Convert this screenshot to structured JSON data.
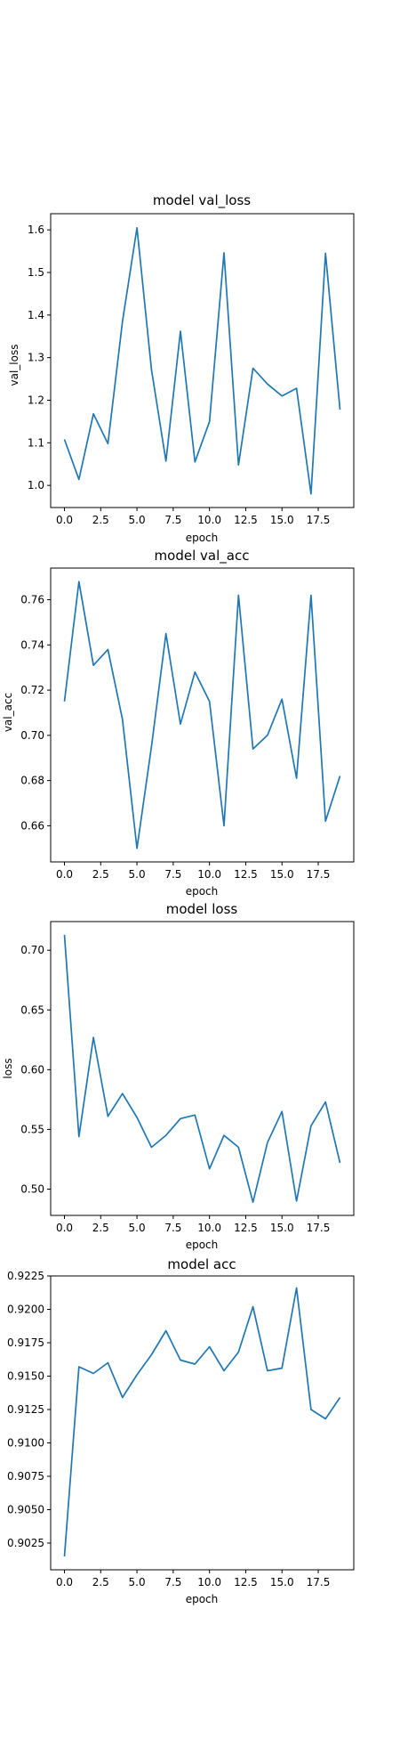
{
  "chart_data": [
    {
      "type": "line",
      "title": "model val_loss",
      "xlabel": "epoch",
      "ylabel": "val_loss",
      "xlim": [
        -0.95,
        19.95
      ],
      "ylim": [
        0.948,
        1.638
      ],
      "xticks": [
        0.0,
        2.5,
        5.0,
        7.5,
        10.0,
        12.5,
        15.0,
        17.5
      ],
      "xtick_labels": [
        "0.0",
        "2.5",
        "5.0",
        "7.5",
        "10.0",
        "12.5",
        "15.0",
        "17.5"
      ],
      "yticks": [
        1.0,
        1.1,
        1.2,
        1.3,
        1.4,
        1.5,
        1.6
      ],
      "ytick_labels": [
        "1.0",
        "1.1",
        "1.2",
        "1.3",
        "1.4",
        "1.5",
        "1.6"
      ],
      "grid": false,
      "series": [
        {
          "color": "#1f77b4",
          "x": [
            0,
            1,
            2,
            3,
            4,
            5,
            6,
            7,
            8,
            9,
            10,
            11,
            12,
            13,
            14,
            15,
            16,
            17,
            18,
            19
          ],
          "y": [
            1.108,
            1.014,
            1.168,
            1.098,
            1.385,
            1.605,
            1.272,
            1.057,
            1.362,
            1.055,
            1.15,
            1.546,
            1.048,
            1.275,
            1.238,
            1.21,
            1.228,
            0.98,
            1.545,
            1.178
          ]
        }
      ]
    },
    {
      "type": "line",
      "title": "model val_acc",
      "xlabel": "epoch",
      "ylabel": "val_acc",
      "xlim": [
        -0.95,
        19.95
      ],
      "ylim": [
        0.644,
        0.774
      ],
      "xticks": [
        0.0,
        2.5,
        5.0,
        7.5,
        10.0,
        12.5,
        15.0,
        17.5
      ],
      "xtick_labels": [
        "0.0",
        "2.5",
        "5.0",
        "7.5",
        "10.0",
        "12.5",
        "15.0",
        "17.5"
      ],
      "yticks": [
        0.66,
        0.68,
        0.7,
        0.72,
        0.74,
        0.76
      ],
      "ytick_labels": [
        "0.66",
        "0.68",
        "0.70",
        "0.72",
        "0.74",
        "0.76"
      ],
      "grid": false,
      "series": [
        {
          "color": "#1f77b4",
          "x": [
            0,
            1,
            2,
            3,
            4,
            5,
            6,
            7,
            8,
            9,
            10,
            11,
            12,
            13,
            14,
            15,
            16,
            17,
            18,
            19
          ],
          "y": [
            0.715,
            0.768,
            0.731,
            0.738,
            0.707,
            0.65,
            0.695,
            0.745,
            0.705,
            0.728,
            0.715,
            0.66,
            0.762,
            0.694,
            0.7,
            0.716,
            0.681,
            0.762,
            0.662,
            0.682
          ]
        }
      ]
    },
    {
      "type": "line",
      "title": "model loss",
      "xlabel": "epoch",
      "ylabel": "loss",
      "xlim": [
        -0.95,
        19.95
      ],
      "ylim": [
        0.478,
        0.724
      ],
      "xticks": [
        0.0,
        2.5,
        5.0,
        7.5,
        10.0,
        12.5,
        15.0,
        17.5
      ],
      "xtick_labels": [
        "0.0",
        "2.5",
        "5.0",
        "7.5",
        "10.0",
        "12.5",
        "15.0",
        "17.5"
      ],
      "yticks": [
        0.5,
        0.55,
        0.6,
        0.65,
        0.7
      ],
      "ytick_labels": [
        "0.50",
        "0.55",
        "0.60",
        "0.65",
        "0.70"
      ],
      "grid": false,
      "series": [
        {
          "color": "#1f77b4",
          "x": [
            0,
            1,
            2,
            3,
            4,
            5,
            6,
            7,
            8,
            9,
            10,
            11,
            12,
            13,
            14,
            15,
            16,
            17,
            18,
            19
          ],
          "y": [
            0.713,
            0.544,
            0.627,
            0.561,
            0.58,
            0.56,
            0.535,
            0.545,
            0.559,
            0.562,
            0.517,
            0.545,
            0.535,
            0.489,
            0.539,
            0.565,
            0.49,
            0.553,
            0.573,
            0.522
          ]
        }
      ]
    },
    {
      "type": "line",
      "title": "model acc",
      "xlabel": "epoch",
      "ylabel": "",
      "xlim": [
        -0.95,
        19.95
      ],
      "ylim": [
        0.9005,
        0.9225
      ],
      "xticks": [
        0.0,
        2.5,
        5.0,
        7.5,
        10.0,
        12.5,
        15.0,
        17.5
      ],
      "xtick_labels": [
        "0.0",
        "2.5",
        "5.0",
        "7.5",
        "10.0",
        "12.5",
        "15.0",
        "17.5"
      ],
      "yticks": [
        0.9025,
        0.905,
        0.9075,
        0.91,
        0.9125,
        0.915,
        0.9175,
        0.92,
        0.9225
      ],
      "ytick_labels": [
        "0.9025",
        "0.9050",
        "0.9075",
        "0.9100",
        "0.9125",
        "0.9150",
        "0.9175",
        "0.9200",
        "0.9225"
      ],
      "grid": false,
      "series": [
        {
          "color": "#1f77b4",
          "x": [
            0,
            1,
            2,
            3,
            4,
            5,
            6,
            7,
            8,
            9,
            10,
            11,
            12,
            13,
            14,
            15,
            16,
            17,
            18,
            19
          ],
          "y": [
            0.9015,
            0.9157,
            0.9152,
            0.916,
            0.9134,
            0.9151,
            0.9166,
            0.9184,
            0.9162,
            0.9159,
            0.9172,
            0.9154,
            0.9168,
            0.9202,
            0.9154,
            0.9156,
            0.9216,
            0.9125,
            0.9118,
            0.9134
          ]
        }
      ]
    }
  ]
}
